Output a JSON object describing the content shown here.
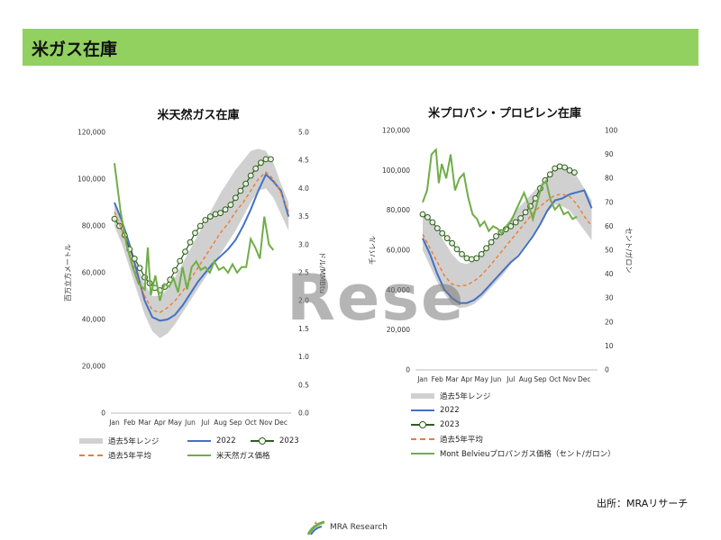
{
  "header": {
    "title": "米ガス在庫",
    "color": "#92d060"
  },
  "watermark": "Rese",
  "source": "出所：MRAリサーチ",
  "footer": {
    "logo_text": "MRA Research"
  },
  "colors": {
    "range": "#d0d0d0",
    "y2022": "#4472c4",
    "y2023": "#2e5e1e",
    "avg": "#ed7d31",
    "price": "#70ad47"
  },
  "chart_data": [
    {
      "type": "line",
      "title": "米天然ガス在庫",
      "ylabel": "百万立方メートル",
      "y2label": "ドル/MMBtu",
      "categories": [
        "Jan",
        "Feb",
        "Mar",
        "Apr",
        "May",
        "Jun",
        "Jul",
        "Aug",
        "Sep",
        "Oct",
        "Nov",
        "Dec"
      ],
      "ylim": [
        0,
        120000
      ],
      "yticks": [
        "0",
        "20,000",
        "40,000",
        "60,000",
        "80,000",
        "100,000",
        "120,000"
      ],
      "y2lim": [
        0,
        5
      ],
      "y2ticks": [
        "0.0",
        "0.5",
        "1.0",
        "1.5",
        "2.0",
        "2.5",
        "3.0",
        "3.5",
        "4.0",
        "4.5",
        "5.0"
      ],
      "series": [
        {
          "name": "過去5年レンジ",
          "kind": "band",
          "x": [
            0,
            0.5,
            1,
            1.5,
            2,
            2.5,
            3,
            3.5,
            4,
            4.5,
            5,
            5.5,
            6,
            6.5,
            7,
            7.5,
            8,
            8.5,
            9,
            9.5,
            10,
            10.5,
            11,
            11.5
          ],
          "low": [
            80000,
            72000,
            62000,
            52000,
            42000,
            35000,
            32000,
            34000,
            38000,
            43000,
            48000,
            53000,
            58000,
            63000,
            68000,
            73000,
            78000,
            84000,
            90000,
            95000,
            96000,
            92000,
            85000,
            78000
          ],
          "high": [
            90000,
            82000,
            72000,
            63000,
            55000,
            50000,
            50000,
            53000,
            58000,
            64000,
            70000,
            76000,
            82000,
            88000,
            94000,
            99000,
            104000,
            108000,
            112000,
            113000,
            112000,
            107000,
            98000,
            90000
          ]
        },
        {
          "name": "2022",
          "kind": "line",
          "x": [
            0,
            0.5,
            1,
            1.5,
            2,
            2.5,
            3,
            3.5,
            4,
            4.5,
            5,
            5.5,
            6,
            6.5,
            7,
            7.5,
            8,
            8.5,
            9,
            9.5,
            10,
            10.5,
            11,
            11.5
          ],
          "values": [
            90000,
            82000,
            72000,
            60000,
            48000,
            41000,
            39500,
            40000,
            42000,
            46000,
            51000,
            56000,
            60000,
            64000,
            67000,
            70000,
            74000,
            80000,
            87000,
            95000,
            102000,
            99000,
            95000,
            84000
          ]
        },
        {
          "name": "2023",
          "kind": "markers",
          "x": [
            0,
            0.33,
            0.67,
            1,
            1.33,
            1.67,
            2,
            2.33,
            2.67,
            3,
            3.33,
            3.67,
            4,
            4.33,
            4.67,
            5,
            5.33,
            5.67,
            6,
            6.33,
            6.67,
            7,
            7.33,
            7.67,
            8,
            8.33,
            8.67,
            9,
            9.33,
            9.67,
            10,
            10.33
          ],
          "values": [
            83000,
            80000,
            76000,
            70000,
            66000,
            62000,
            58000,
            55500,
            53500,
            52500,
            54000,
            57000,
            61000,
            65000,
            69000,
            73000,
            77000,
            80000,
            82500,
            84000,
            85000,
            85500,
            87000,
            89000,
            92000,
            95000,
            98000,
            101500,
            104500,
            107000,
            108500,
            108500
          ]
        },
        {
          "name": "過去5年平均",
          "kind": "dashed",
          "x": [
            0,
            0.5,
            1,
            1.5,
            2,
            2.5,
            3,
            3.5,
            4,
            4.5,
            5,
            5.5,
            6,
            6.5,
            7,
            7.5,
            8,
            8.5,
            9,
            9.5,
            10,
            10.5,
            11,
            11.5
          ],
          "values": [
            86000,
            78000,
            68000,
            58000,
            50000,
            44000,
            43000,
            45000,
            48000,
            52000,
            57000,
            62000,
            67000,
            72000,
            77000,
            81000,
            86000,
            90000,
            95000,
            100000,
            103000,
            100000,
            94000,
            86000
          ]
        },
        {
          "name": "米天然ガス価格",
          "kind": "price",
          "axis": "y2",
          "x": [
            0,
            0.4,
            0.8,
            1.2,
            1.6,
            2.0,
            2.2,
            2.4,
            2.7,
            3.0,
            3.3,
            3.6,
            3.9,
            4.2,
            4.5,
            4.8,
            5.1,
            5.4,
            5.7,
            6.0,
            6.3,
            6.6,
            6.9,
            7.2,
            7.5,
            7.8,
            8.1,
            8.4,
            8.7,
            9.0,
            9.3,
            9.6,
            9.9,
            10.2,
            10.5
          ],
          "values": [
            4.45,
            3.6,
            3.0,
            2.6,
            2.3,
            2.2,
            2.95,
            2.1,
            2.45,
            2.0,
            2.3,
            2.25,
            2.4,
            2.15,
            2.6,
            2.2,
            2.6,
            2.7,
            2.55,
            2.6,
            2.5,
            2.7,
            2.55,
            2.6,
            2.5,
            2.65,
            2.5,
            2.6,
            2.6,
            3.1,
            2.95,
            2.75,
            3.5,
            3.0,
            2.9
          ]
        }
      ]
    },
    {
      "type": "line",
      "title": "米プロパン・プロピレン在庫",
      "ylabel": "千バレル",
      "y2label": "セント/ガロン",
      "categories": [
        "Jan",
        "Feb",
        "Mar",
        "Apr",
        "May",
        "Jun",
        "Jul",
        "Aug",
        "Sep",
        "Oct",
        "Nov",
        "Dec"
      ],
      "ylim": [
        0,
        120000
      ],
      "yticks": [
        "0",
        "20,000",
        "40,000",
        "60,000",
        "80,000",
        "100,000",
        "120,000"
      ],
      "y2lim": [
        0,
        100
      ],
      "y2ticks": [
        "0",
        "10",
        "20",
        "30",
        "40",
        "50",
        "60",
        "70",
        "80",
        "90",
        "100"
      ],
      "series": [
        {
          "name": "過去5年レンジ",
          "kind": "band",
          "x": [
            0,
            0.5,
            1,
            1.5,
            2,
            2.5,
            3,
            3.5,
            4,
            4.5,
            5,
            5.5,
            6,
            6.5,
            7,
            7.5,
            8,
            8.5,
            9,
            9.5,
            10,
            10.5,
            11,
            11.5
          ],
          "low": [
            60000,
            52000,
            44000,
            38000,
            33000,
            31000,
            31500,
            33000,
            36000,
            40000,
            44000,
            48000,
            53000,
            58000,
            63000,
            68000,
            74000,
            79000,
            83000,
            82000,
            80000,
            75000,
            70000,
            65000
          ],
          "high": [
            80000,
            76000,
            70000,
            64000,
            58000,
            54000,
            53000,
            55000,
            58000,
            62000,
            66000,
            71000,
            76000,
            81000,
            85000,
            89000,
            93000,
            97000,
            100000,
            102000,
            101000,
            97000,
            91000,
            85000
          ]
        },
        {
          "name": "2022",
          "kind": "line",
          "x": [
            0,
            0.5,
            1,
            1.5,
            2,
            2.5,
            3,
            3.5,
            4,
            4.5,
            5,
            5.5,
            6,
            6.5,
            7,
            7.5,
            8,
            8.5,
            9,
            9.5,
            10,
            10.5,
            11,
            11.5
          ],
          "values": [
            66000,
            58000,
            48000,
            40000,
            36000,
            33500,
            33500,
            35000,
            38000,
            42000,
            46000,
            50000,
            54000,
            57000,
            62000,
            67000,
            73000,
            80000,
            85000,
            86000,
            88000,
            89000,
            90000,
            81000
          ]
        },
        {
          "name": "2023",
          "kind": "markers",
          "x": [
            0,
            0.33,
            0.67,
            1,
            1.33,
            1.67,
            2,
            2.33,
            2.67,
            3,
            3.33,
            3.67,
            4,
            4.33,
            4.67,
            5,
            5.33,
            5.67,
            6,
            6.33,
            6.67,
            7,
            7.33,
            7.67,
            8,
            8.33,
            8.67,
            9,
            9.33,
            9.67,
            10,
            10.33
          ],
          "values": [
            78000,
            76500,
            74000,
            71000,
            68500,
            66000,
            63500,
            60500,
            58000,
            56000,
            55500,
            56000,
            58000,
            61000,
            64000,
            67000,
            69000,
            70500,
            72000,
            74000,
            76000,
            79000,
            82000,
            86000,
            91000,
            95000,
            98000,
            101000,
            102000,
            101500,
            100000,
            99000
          ]
        },
        {
          "name": "過去5年平均",
          "kind": "dashed",
          "x": [
            0,
            0.5,
            1,
            1.5,
            2,
            2.5,
            3,
            3.5,
            4,
            4.5,
            5,
            5.5,
            6,
            6.5,
            7,
            7.5,
            8,
            8.5,
            9,
            9.5,
            10,
            10.5,
            11,
            11.5
          ],
          "values": [
            68000,
            61000,
            54000,
            47000,
            43000,
            42000,
            42500,
            44500,
            47500,
            51500,
            56000,
            60500,
            65000,
            69500,
            74000,
            78500,
            82000,
            85000,
            87500,
            88000,
            87000,
            83000,
            77000,
            72000
          ]
        },
        {
          "name": "Mont Belvieuプロパンガス価格（セント/ガロン）",
          "kind": "price",
          "axis": "y2",
          "x": [
            0,
            0.3,
            0.6,
            0.9,
            1.1,
            1.3,
            1.6,
            1.9,
            2.2,
            2.5,
            2.8,
            3.1,
            3.4,
            3.7,
            3.9,
            4.2,
            4.5,
            4.8,
            5.1,
            5.4,
            5.7,
            6.0,
            6.3,
            6.6,
            6.9,
            7.2,
            7.5,
            7.8,
            8.1,
            8.4,
            8.7,
            9.0,
            9.3,
            9.6,
            9.9,
            10.2,
            10.5
          ],
          "values": [
            70,
            75,
            90,
            92,
            78,
            86,
            80,
            90,
            75,
            80,
            82,
            72,
            65,
            63,
            60,
            62,
            58,
            60,
            59,
            57,
            60,
            62,
            66,
            70,
            74,
            69,
            63,
            70,
            77,
            79,
            71,
            67,
            69,
            65,
            66,
            63,
            64
          ]
        }
      ]
    }
  ],
  "legends": [
    {
      "items": [
        "過去5年レンジ",
        "2022",
        "2023",
        "過去5年平均",
        "米天然ガス価格"
      ]
    },
    {
      "items": [
        "過去5年レンジ",
        "2022",
        "2023",
        "過去5年平均",
        "Mont Belvieuプロパンガス価格（セント/ガロン）"
      ]
    }
  ]
}
